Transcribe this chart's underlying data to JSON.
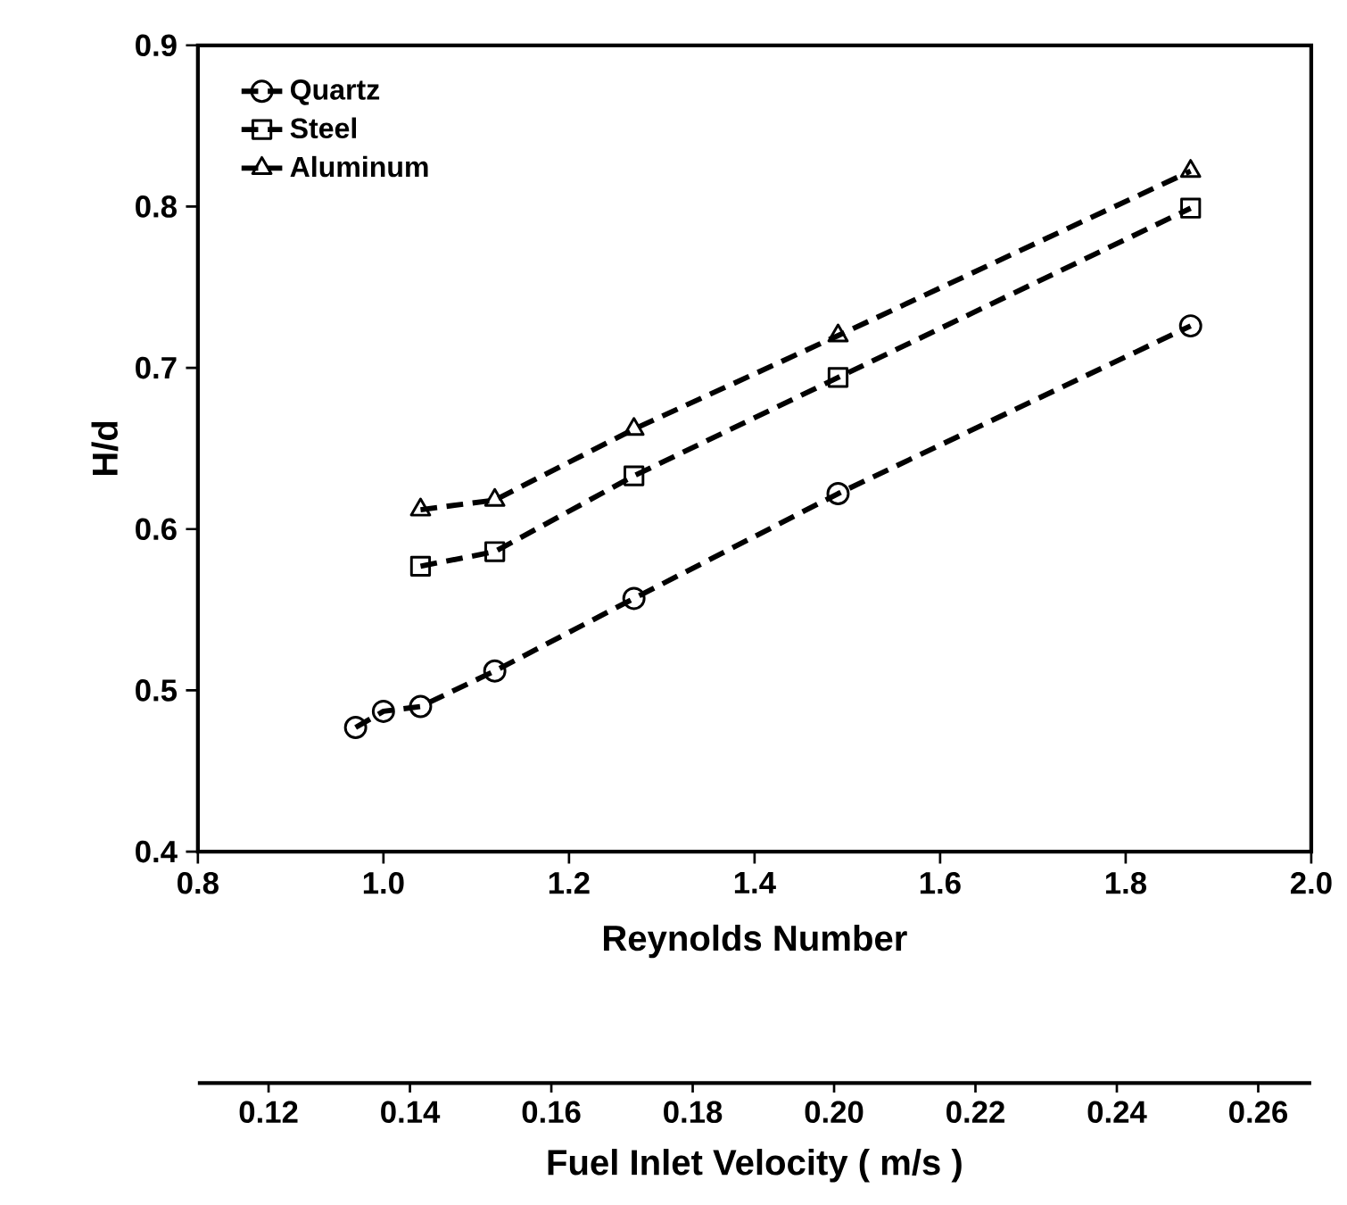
{
  "chart_data": {
    "type": "line",
    "xlabel": "Reynolds Number",
    "ylabel": "H/d",
    "x2label": "Fuel Inlet Velocity ( m/s )",
    "xlim": [
      0.8,
      2.0
    ],
    "xticks": [
      0.8,
      {
        "value": 1.0,
        "label": "1.0"
      },
      1.2,
      1.4,
      1.6,
      1.8,
      {
        "value": 2.0,
        "label": "2.0"
      }
    ],
    "ylim": [
      0.4,
      0.9
    ],
    "yticks": [
      0.4,
      0.5,
      0.6,
      0.7,
      0.8,
      0.9
    ],
    "x2lim": [
      0.11,
      0.2675
    ],
    "x2ticks": [
      0.12,
      0.14,
      0.16,
      0.18,
      {
        "value": 0.2,
        "label": "0.20"
      },
      0.22,
      0.24,
      0.26
    ],
    "legend": "top left",
    "line_style": "dashed",
    "grid": false,
    "series": [
      {
        "name": "Quartz",
        "color": "#000000",
        "marker": "circle",
        "x": [
          0.97,
          1.0,
          1.04,
          1.12,
          1.27,
          1.49,
          1.87
        ],
        "values": [
          0.477,
          0.487,
          0.49,
          0.512,
          0.557,
          0.622,
          0.726
        ]
      },
      {
        "name": "Steel",
        "color": "#000000",
        "marker": "square",
        "x": [
          1.04,
          1.12,
          1.27,
          1.49,
          1.87
        ],
        "values": [
          0.577,
          0.586,
          0.633,
          0.694,
          0.799
        ]
      },
      {
        "name": "Aluminum",
        "color": "#000000",
        "marker": "triangle",
        "x": [
          1.04,
          1.12,
          1.27,
          1.49,
          1.87
        ],
        "values": [
          0.612,
          0.618,
          0.662,
          0.72,
          0.822
        ]
      }
    ]
  }
}
